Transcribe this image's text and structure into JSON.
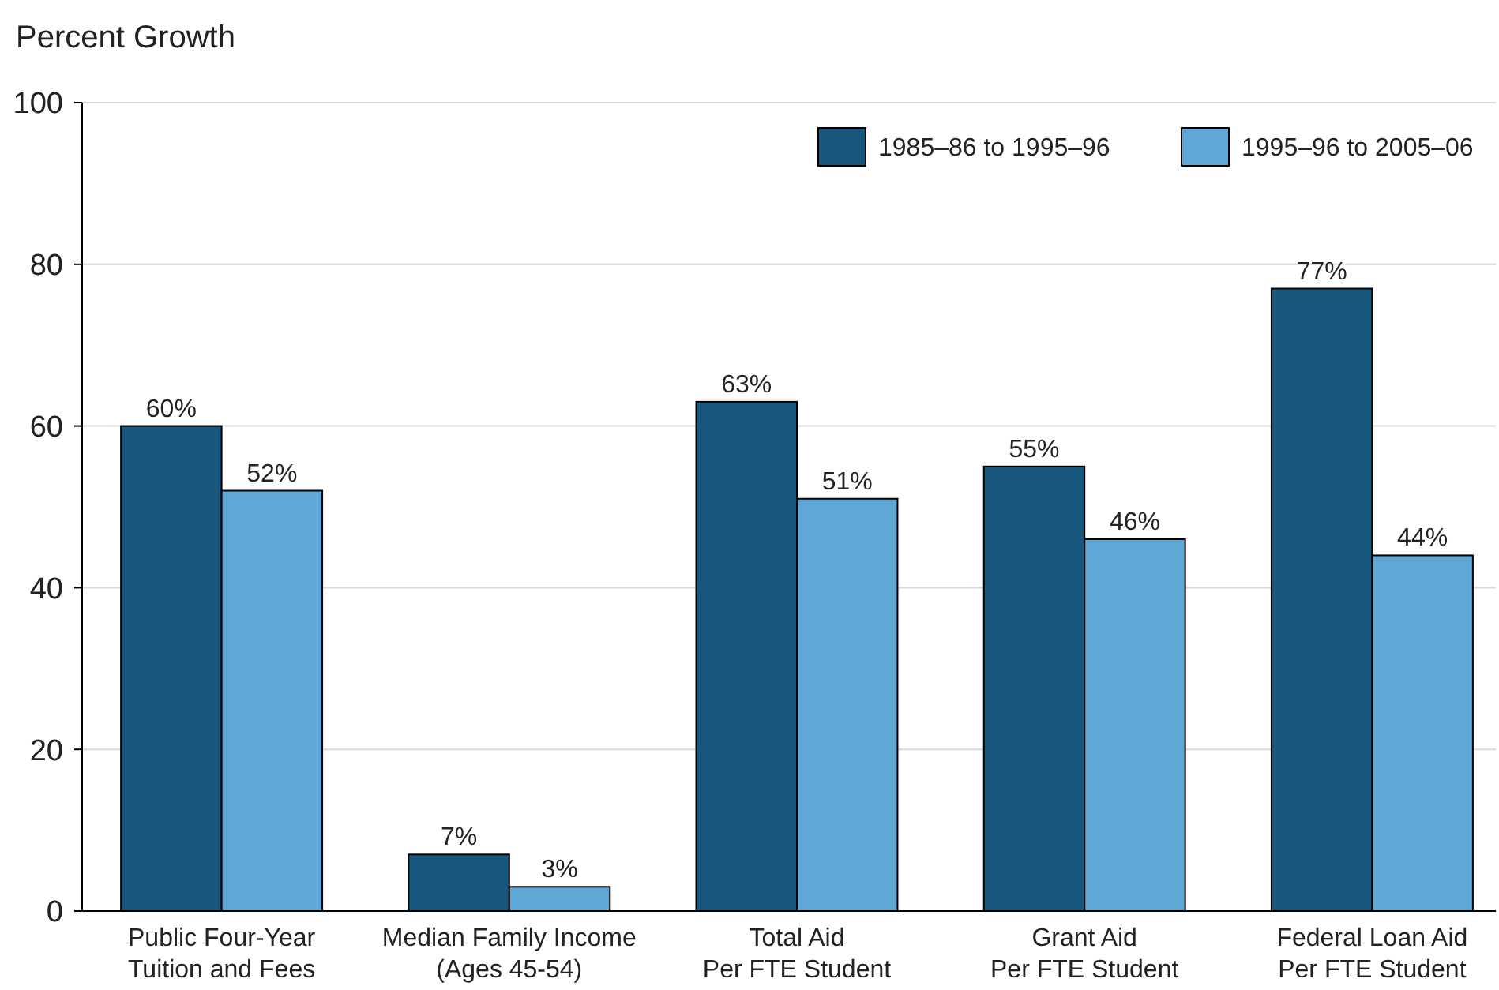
{
  "chart_data": {
    "type": "bar",
    "ylabel": "Percent Growth",
    "categories": [
      "Public Four-Year\nTuition and Fees",
      "Median Family Income\n(Ages 45-54)",
      "Total Aid\nPer FTE Student",
      "Grant Aid\nPer FTE Student",
      "Federal Loan Aid\nPer FTE Student"
    ],
    "series": [
      {
        "name": "1985–86 to 1995–96",
        "color": "#17577e",
        "values": [
          60,
          7,
          63,
          55,
          77
        ],
        "value_labels": [
          "60%",
          "7%",
          "63%",
          "55%",
          "77%"
        ]
      },
      {
        "name": "1995–96 to 2005–06",
        "color": "#5ea7d6",
        "values": [
          52,
          3,
          51,
          46,
          44
        ],
        "value_labels": [
          "52%",
          "3%",
          "51%",
          "46%",
          "44%"
        ]
      }
    ],
    "ylim": [
      0,
      100
    ],
    "yticks": [
      0,
      20,
      40,
      60,
      80,
      100
    ],
    "grid": "y",
    "legend": "top right"
  }
}
